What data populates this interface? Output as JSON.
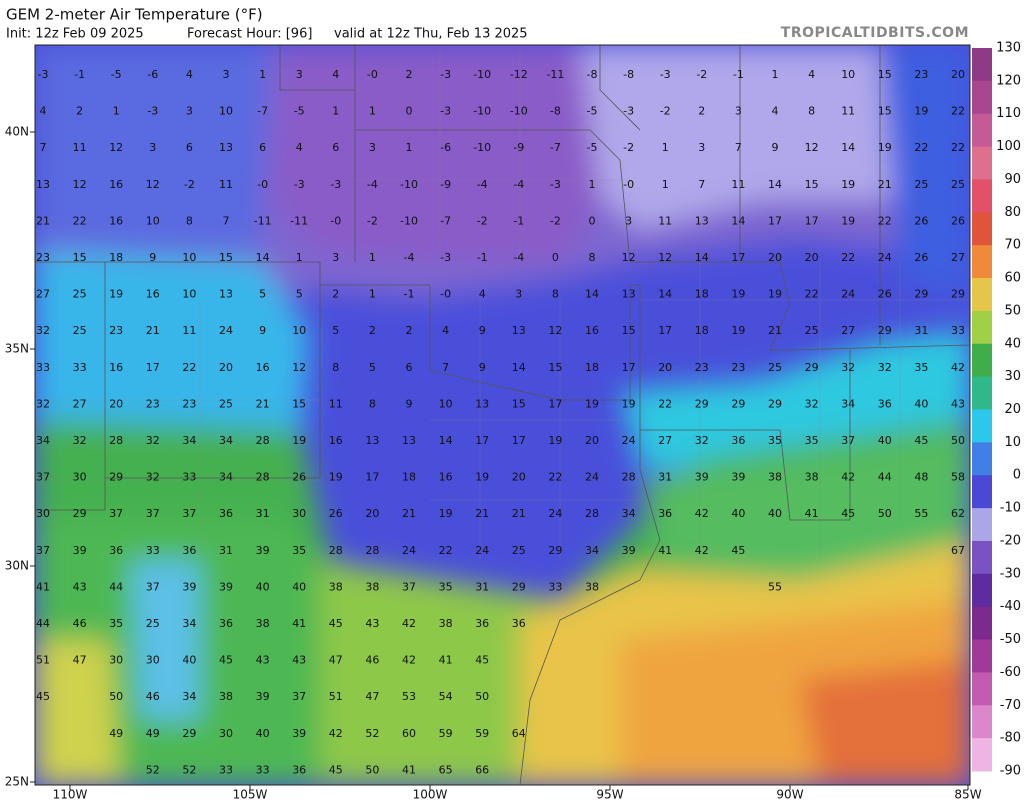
{
  "header": {
    "title": "GEM 2-meter Air Temperature (°F)",
    "init": "Init: 12z Feb 09 2025",
    "forecast_hour": "Forecast Hour: [96]",
    "valid": "valid at 12z Thu, Feb 13 2025",
    "site": "TROPICALTIDBITS.COM"
  },
  "map": {
    "lat_labels": [
      "40N",
      "35N",
      "30N",
      "25N"
    ],
    "lon_labels": [
      "110W",
      "105W",
      "100W",
      "95W",
      "90W",
      "85W"
    ],
    "station_rows": [
      [
        -3,
        -1,
        -5,
        -6,
        4,
        3,
        1,
        3,
        4,
        "-0",
        2,
        -3,
        -10,
        -12,
        -11,
        -8,
        -8,
        -3,
        -2,
        -1,
        1,
        4,
        10,
        15,
        23,
        20
      ],
      [
        4,
        2,
        1,
        -3,
        3,
        10,
        -7,
        -5,
        1,
        1,
        0,
        -3,
        -10,
        -10,
        -8,
        -5,
        -3,
        -2,
        2,
        3,
        4,
        8,
        11,
        15,
        19,
        22
      ],
      [
        7,
        11,
        12,
        3,
        6,
        13,
        6,
        4,
        6,
        3,
        1,
        -6,
        -10,
        -9,
        -7,
        -5,
        -2,
        1,
        3,
        7,
        9,
        12,
        14,
        19,
        22,
        22
      ],
      [
        13,
        12,
        16,
        12,
        -2,
        11,
        "-0",
        -3,
        -3,
        -4,
        -10,
        -9,
        -4,
        -4,
        -3,
        1,
        "-0",
        1,
        7,
        11,
        14,
        15,
        19,
        21,
        25,
        25
      ],
      [
        21,
        22,
        16,
        10,
        8,
        7,
        -11,
        -11,
        "-0",
        -2,
        -10,
        -7,
        -2,
        -1,
        -2,
        0,
        3,
        11,
        13,
        14,
        17,
        17,
        19,
        22,
        26,
        26
      ],
      [
        23,
        15,
        18,
        9,
        10,
        15,
        14,
        1,
        3,
        1,
        -4,
        -3,
        -1,
        -4,
        0,
        8,
        12,
        12,
        14,
        17,
        20,
        20,
        22,
        24,
        26,
        27
      ],
      [
        27,
        25,
        19,
        16,
        10,
        13,
        5,
        5,
        2,
        1,
        -1,
        "-0",
        4,
        3,
        8,
        14,
        13,
        14,
        18,
        19,
        19,
        22,
        24,
        26,
        29,
        29
      ],
      [
        32,
        25,
        23,
        21,
        11,
        24,
        9,
        10,
        5,
        2,
        2,
        4,
        9,
        13,
        12,
        16,
        15,
        17,
        18,
        19,
        21,
        25,
        27,
        29,
        31,
        33
      ],
      [
        33,
        33,
        16,
        17,
        22,
        20,
        16,
        12,
        8,
        5,
        6,
        7,
        9,
        14,
        15,
        18,
        17,
        20,
        23,
        23,
        25,
        29,
        32,
        32,
        35,
        42
      ],
      [
        32,
        27,
        20,
        23,
        23,
        25,
        21,
        15,
        11,
        8,
        9,
        10,
        13,
        15,
        17,
        19,
        19,
        22,
        29,
        29,
        29,
        32,
        34,
        36,
        40,
        43
      ],
      [
        34,
        32,
        28,
        32,
        34,
        34,
        28,
        19,
        16,
        13,
        13,
        14,
        17,
        17,
        19,
        20,
        24,
        27,
        32,
        36,
        35,
        35,
        37,
        40,
        45,
        50
      ],
      [
        37,
        30,
        29,
        32,
        33,
        34,
        28,
        26,
        19,
        17,
        18,
        16,
        19,
        20,
        22,
        24,
        28,
        31,
        39,
        39,
        38,
        38,
        42,
        44,
        48,
        58
      ],
      [
        30,
        29,
        37,
        37,
        37,
        36,
        31,
        30,
        26,
        20,
        21,
        19,
        21,
        21,
        24,
        28,
        34,
        36,
        42,
        40,
        40,
        41,
        45,
        50,
        55,
        62
      ],
      [
        37,
        39,
        36,
        33,
        36,
        31,
        39,
        35,
        28,
        28,
        24,
        22,
        24,
        25,
        29,
        34,
        39,
        41,
        42,
        45,
        null,
        null,
        null,
        null,
        null,
        67
      ],
      [
        41,
        43,
        44,
        37,
        39,
        39,
        40,
        40,
        38,
        38,
        37,
        35,
        31,
        29,
        33,
        38,
        null,
        null,
        null,
        null,
        55
      ],
      [
        44,
        46,
        35,
        25,
        34,
        36,
        38,
        41,
        45,
        43,
        42,
        38,
        36,
        36
      ],
      [
        51,
        47,
        30,
        30,
        40,
        45,
        43,
        43,
        47,
        46,
        42,
        41,
        45
      ],
      [
        45,
        null,
        50,
        46,
        34,
        38,
        39,
        37,
        51,
        47,
        53,
        54,
        50
      ],
      [
        null,
        null,
        49,
        49,
        29,
        30,
        40,
        39,
        42,
        52,
        60,
        59,
        59,
        64
      ],
      [
        null,
        null,
        null,
        52,
        52,
        33,
        33,
        36,
        45,
        50,
        41,
        65,
        66
      ]
    ]
  },
  "colorbar": {
    "labels": [
      130,
      120,
      110,
      100,
      90,
      80,
      70,
      60,
      50,
      40,
      30,
      20,
      10,
      0,
      -10,
      -20,
      -30,
      -40,
      -50,
      -60,
      -70,
      -80,
      -90
    ],
    "colors": [
      "#8e3a86",
      "#a8468f",
      "#c45a96",
      "#de6f8e",
      "#e2506a",
      "#e0543c",
      "#ee8a3a",
      "#e6c64a",
      "#9fd046",
      "#3fae48",
      "#2fb98a",
      "#2cc8ec",
      "#3f7fe6",
      "#4a49d6",
      "#aaa6e8",
      "#7a52c2",
      "#5e2c9e",
      "#7d2a8e",
      "#a03a98",
      "#c35cb0",
      "#dc86cc",
      "#eeb4e2"
    ]
  }
}
